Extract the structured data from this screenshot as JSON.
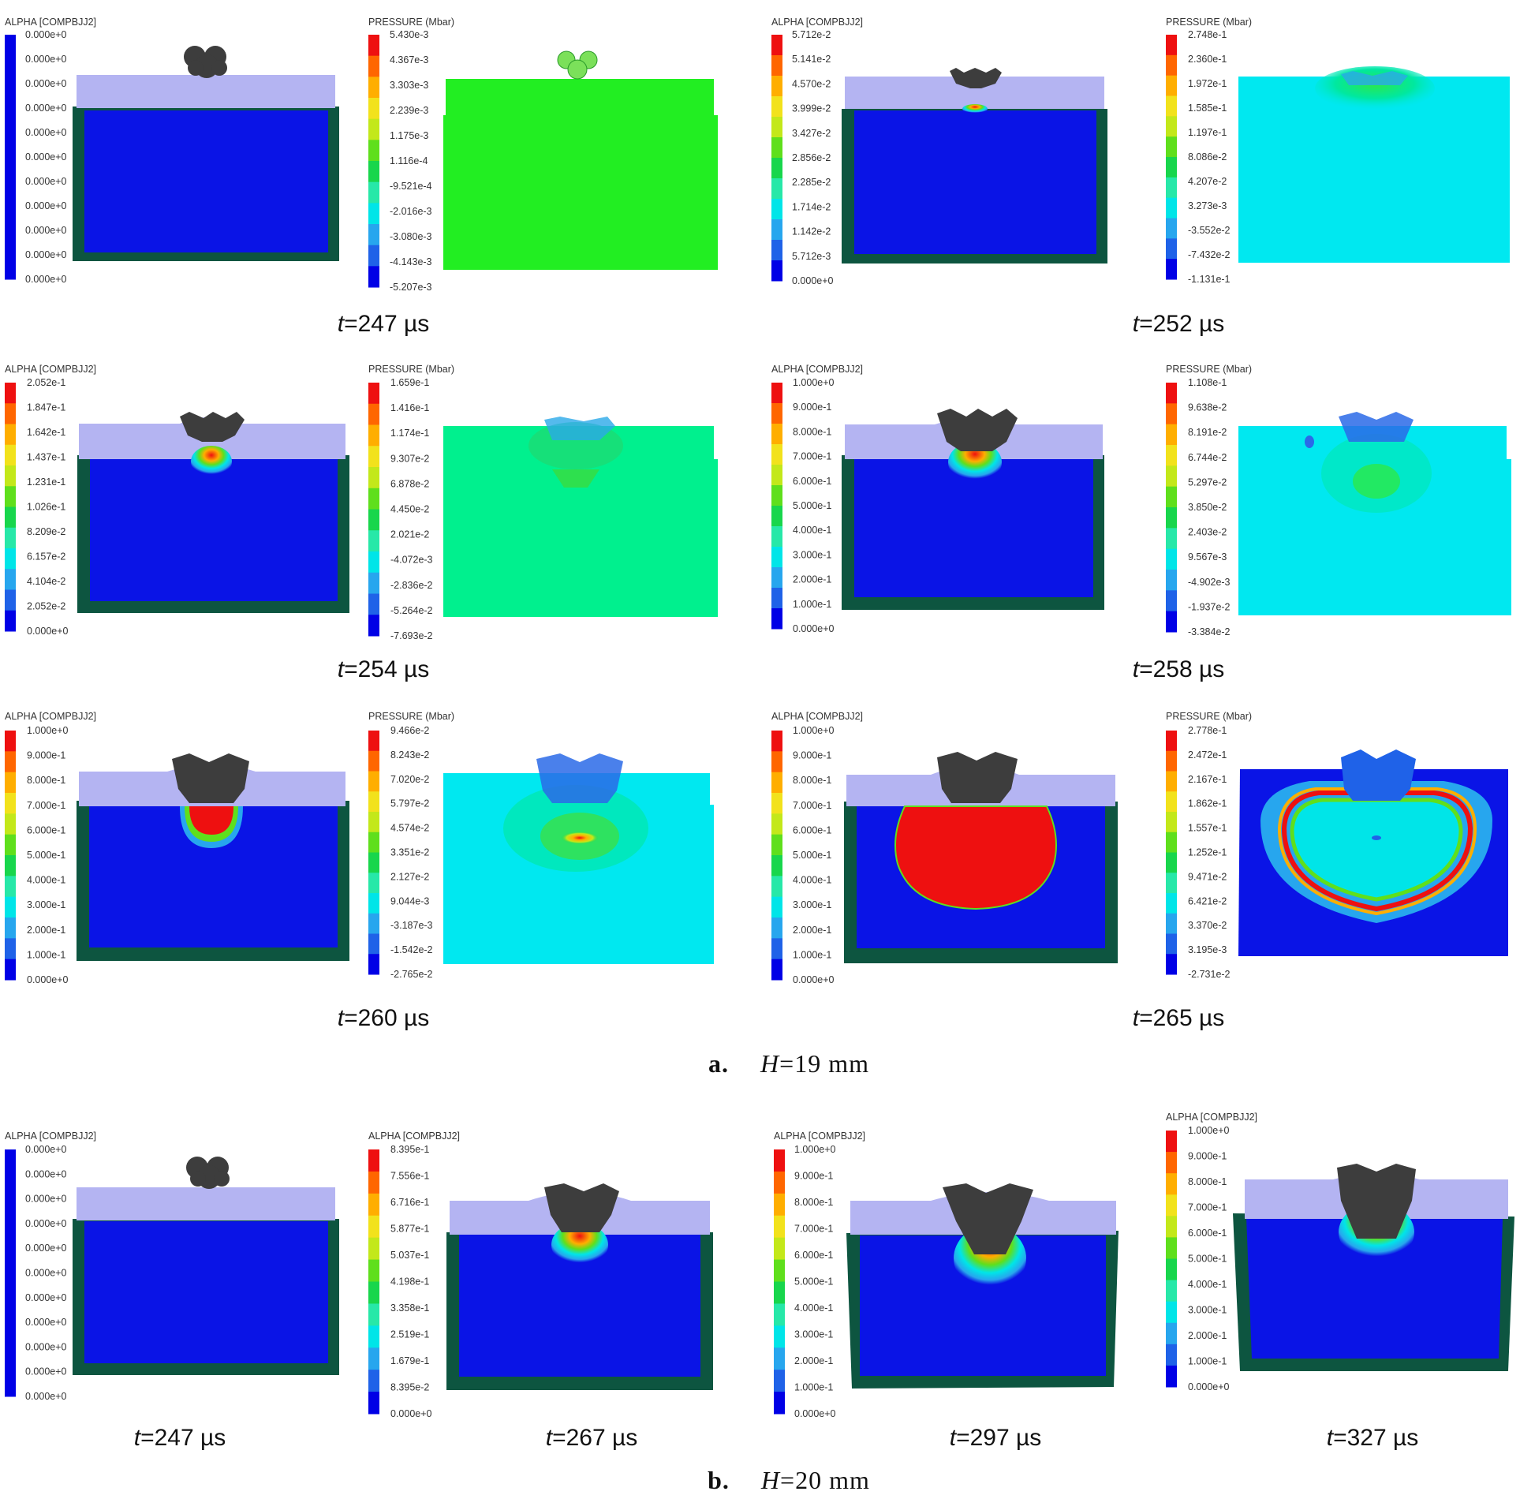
{
  "colors": {
    "scale": [
      "#0000e6",
      "#1f62e8",
      "#27a6ee",
      "#00e5e8",
      "#27e8a8",
      "#18d64c",
      "#5fdf1c",
      "#c3e81a",
      "#f2e21c",
      "#ffae00",
      "#ff6600",
      "#ee1010"
    ],
    "target_blue": "#0a14e6",
    "cover_plate": "#b4b4f2",
    "casing": "#0d5540",
    "projectile": "#3d3d3d",
    "pressure_bg_green": "#22ee22",
    "pressure_bg_spring": "#00f08e",
    "pressure_bg_cyan": "#00e8f0",
    "charge_red": "#ee1010"
  },
  "panels": [
    {
      "kind": "alpha",
      "title": "ALPHA [COMPBJJ2]",
      "values": [
        "0.000e+0",
        "0.000e+0",
        "0.000e+0",
        "0.000e+0",
        "0.000e+0",
        "0.000e+0",
        "0.000e+0",
        "0.000e+0",
        "0.000e+0",
        "0.000e+0",
        "0.000e+0"
      ]
    },
    {
      "kind": "pressure",
      "title": "PRESSURE (Mbar)",
      "values": [
        "5.430e-3",
        "4.367e-3",
        "3.303e-3",
        "2.239e-3",
        "1.175e-3",
        "1.116e-4",
        "-9.521e-4",
        "-2.016e-3",
        "-3.080e-3",
        "-4.143e-3",
        "-5.207e-3"
      ]
    },
    {
      "kind": "alpha",
      "title": "ALPHA [COMPBJJ2]",
      "values": [
        "5.712e-2",
        "5.141e-2",
        "4.570e-2",
        "3.999e-2",
        "3.427e-2",
        "2.856e-2",
        "2.285e-2",
        "1.714e-2",
        "1.142e-2",
        "5.712e-3",
        "0.000e+0"
      ]
    },
    {
      "kind": "pressure",
      "title": "PRESSURE (Mbar)",
      "values": [
        "2.748e-1",
        "2.360e-1",
        "1.972e-1",
        "1.585e-1",
        "1.197e-1",
        "8.086e-2",
        "4.207e-2",
        "3.273e-3",
        "-3.552e-2",
        "-7.432e-2",
        "-1.131e-1"
      ]
    },
    {
      "kind": "alpha",
      "title": "ALPHA [COMPBJJ2]",
      "values": [
        "2.052e-1",
        "1.847e-1",
        "1.642e-1",
        "1.437e-1",
        "1.231e-1",
        "1.026e-1",
        "8.209e-2",
        "6.157e-2",
        "4.104e-2",
        "2.052e-2",
        "0.000e+0"
      ]
    },
    {
      "kind": "pressure",
      "title": "PRESSURE (Mbar)",
      "values": [
        "1.659e-1",
        "1.416e-1",
        "1.174e-1",
        "9.307e-2",
        "6.878e-2",
        "4.450e-2",
        "2.021e-2",
        "-4.072e-3",
        "-2.836e-2",
        "-5.264e-2",
        "-7.693e-2"
      ]
    },
    {
      "kind": "alpha",
      "title": "ALPHA [COMPBJJ2]",
      "values": [
        "1.000e+0",
        "9.000e-1",
        "8.000e-1",
        "7.000e-1",
        "6.000e-1",
        "5.000e-1",
        "4.000e-1",
        "3.000e-1",
        "2.000e-1",
        "1.000e-1",
        "0.000e+0"
      ]
    },
    {
      "kind": "pressure",
      "title": "PRESSURE (Mbar)",
      "values": [
        "1.108e-1",
        "9.638e-2",
        "8.191e-2",
        "6.744e-2",
        "5.297e-2",
        "3.850e-2",
        "2.403e-2",
        "9.567e-3",
        "-4.902e-3",
        "-1.937e-2",
        "-3.384e-2"
      ]
    },
    {
      "kind": "alpha",
      "title": "ALPHA [COMPBJJ2]",
      "values": [
        "1.000e+0",
        "9.000e-1",
        "8.000e-1",
        "7.000e-1",
        "6.000e-1",
        "5.000e-1",
        "4.000e-1",
        "3.000e-1",
        "2.000e-1",
        "1.000e-1",
        "0.000e+0"
      ]
    },
    {
      "kind": "pressure",
      "title": "PRESSURE (Mbar)",
      "values": [
        "9.466e-2",
        "8.243e-2",
        "7.020e-2",
        "5.797e-2",
        "4.574e-2",
        "3.351e-2",
        "2.127e-2",
        "9.044e-3",
        "-3.187e-3",
        "-1.542e-2",
        "-2.765e-2"
      ]
    },
    {
      "kind": "alpha",
      "title": "ALPHA [COMPBJJ2]",
      "values": [
        "1.000e+0",
        "9.000e-1",
        "8.000e-1",
        "7.000e-1",
        "6.000e-1",
        "5.000e-1",
        "4.000e-1",
        "3.000e-1",
        "2.000e-1",
        "1.000e-1",
        "0.000e+0"
      ]
    },
    {
      "kind": "pressure",
      "title": "PRESSURE (Mbar)",
      "values": [
        "2.778e-1",
        "2.472e-1",
        "2.167e-1",
        "1.862e-1",
        "1.557e-1",
        "1.252e-1",
        "9.471e-2",
        "6.421e-2",
        "3.370e-2",
        "3.195e-3",
        "-2.731e-2"
      ]
    },
    {
      "kind": "alpha",
      "title": "ALPHA [COMPBJJ2]",
      "values": [
        "0.000e+0",
        "0.000e+0",
        "0.000e+0",
        "0.000e+0",
        "0.000e+0",
        "0.000e+0",
        "0.000e+0",
        "0.000e+0",
        "0.000e+0",
        "0.000e+0",
        "0.000e+0"
      ]
    },
    {
      "kind": "alpha",
      "title": "ALPHA [COMPBJJ2]",
      "values": [
        "8.395e-1",
        "7.556e-1",
        "6.716e-1",
        "5.877e-1",
        "5.037e-1",
        "4.198e-1",
        "3.358e-1",
        "2.519e-1",
        "1.679e-1",
        "8.395e-2",
        "0.000e+0"
      ]
    },
    {
      "kind": "alpha",
      "title": "ALPHA [COMPBJJ2]",
      "values": [
        "1.000e+0",
        "9.000e-1",
        "8.000e-1",
        "7.000e-1",
        "6.000e-1",
        "5.000e-1",
        "4.000e-1",
        "3.000e-1",
        "2.000e-1",
        "1.000e-1",
        "0.000e+0"
      ]
    },
    {
      "kind": "alpha",
      "title": "ALPHA [COMPBJJ2]",
      "values": [
        "1.000e+0",
        "9.000e-1",
        "8.000e-1",
        "7.000e-1",
        "6.000e-1",
        "5.000e-1",
        "4.000e-1",
        "3.000e-1",
        "2.000e-1",
        "1.000e-1",
        "0.000e+0"
      ]
    }
  ],
  "time_labels": [
    {
      "prefix": "t",
      "text": "=247 µs"
    },
    {
      "prefix": "t",
      "text": "=252 µs"
    },
    {
      "prefix": "t",
      "text": "=254 µs"
    },
    {
      "prefix": "t",
      "text": "=258 µs"
    },
    {
      "prefix": "t",
      "text": "=260 µs"
    },
    {
      "prefix": "t",
      "text": "=265 µs"
    },
    {
      "prefix": "t",
      "text": "=247 µs"
    },
    {
      "prefix": "t",
      "text": "=267 µs"
    },
    {
      "prefix": "t",
      "text": "=297 µs"
    },
    {
      "prefix": "t",
      "text": "=327 µs"
    }
  ],
  "captions": [
    {
      "letter": "a.",
      "var": "H",
      "text": "=19 mm"
    },
    {
      "letter": "b.",
      "var": "H",
      "text": "=20 mm"
    }
  ]
}
